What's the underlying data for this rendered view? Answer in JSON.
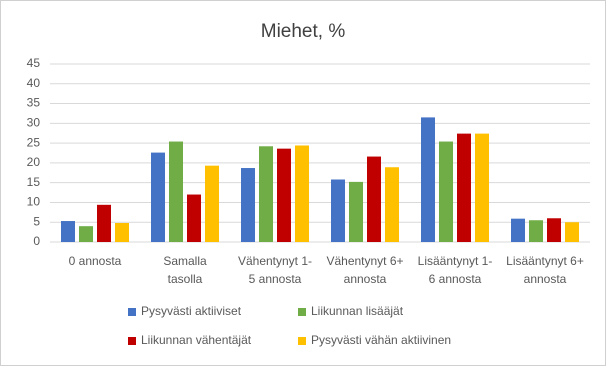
{
  "chart_data": {
    "type": "bar",
    "title": "Miehet, %",
    "categories": [
      [
        "0 annosta"
      ],
      [
        "Samalla",
        "tasolla"
      ],
      [
        "Vähentynyt 1-",
        "5 annosta"
      ],
      [
        "Vähentynyt 6+",
        "annosta"
      ],
      [
        "Lisääntynyt 1-",
        "6 annosta"
      ],
      [
        "Lisääntynyt 6+",
        "annosta"
      ]
    ],
    "series": [
      {
        "name": "Pysyvästi aktiiviset",
        "color": "#4472c4",
        "values": [
          5.3,
          22.6,
          18.7,
          15.8,
          31.5,
          5.9
        ]
      },
      {
        "name": "Liikunnan lisääjät",
        "color": "#70ad47",
        "values": [
          4,
          25.4,
          24.2,
          15.2,
          25.4,
          5.5
        ]
      },
      {
        "name": "Liikunnan vähentäjät",
        "color": "#c00000",
        "values": [
          9.4,
          12,
          23.6,
          21.6,
          27.4,
          6
        ]
      },
      {
        "name": "Pysyvästi vähän aktiivinen",
        "color": "#ffc000",
        "values": [
          4.8,
          19.3,
          24.4,
          18.9,
          27.4,
          5
        ]
      }
    ],
    "ylim": [
      0,
      45
    ],
    "yticks": [
      0,
      5,
      10,
      15,
      20,
      25,
      30,
      35,
      40,
      45
    ],
    "grid": true
  }
}
